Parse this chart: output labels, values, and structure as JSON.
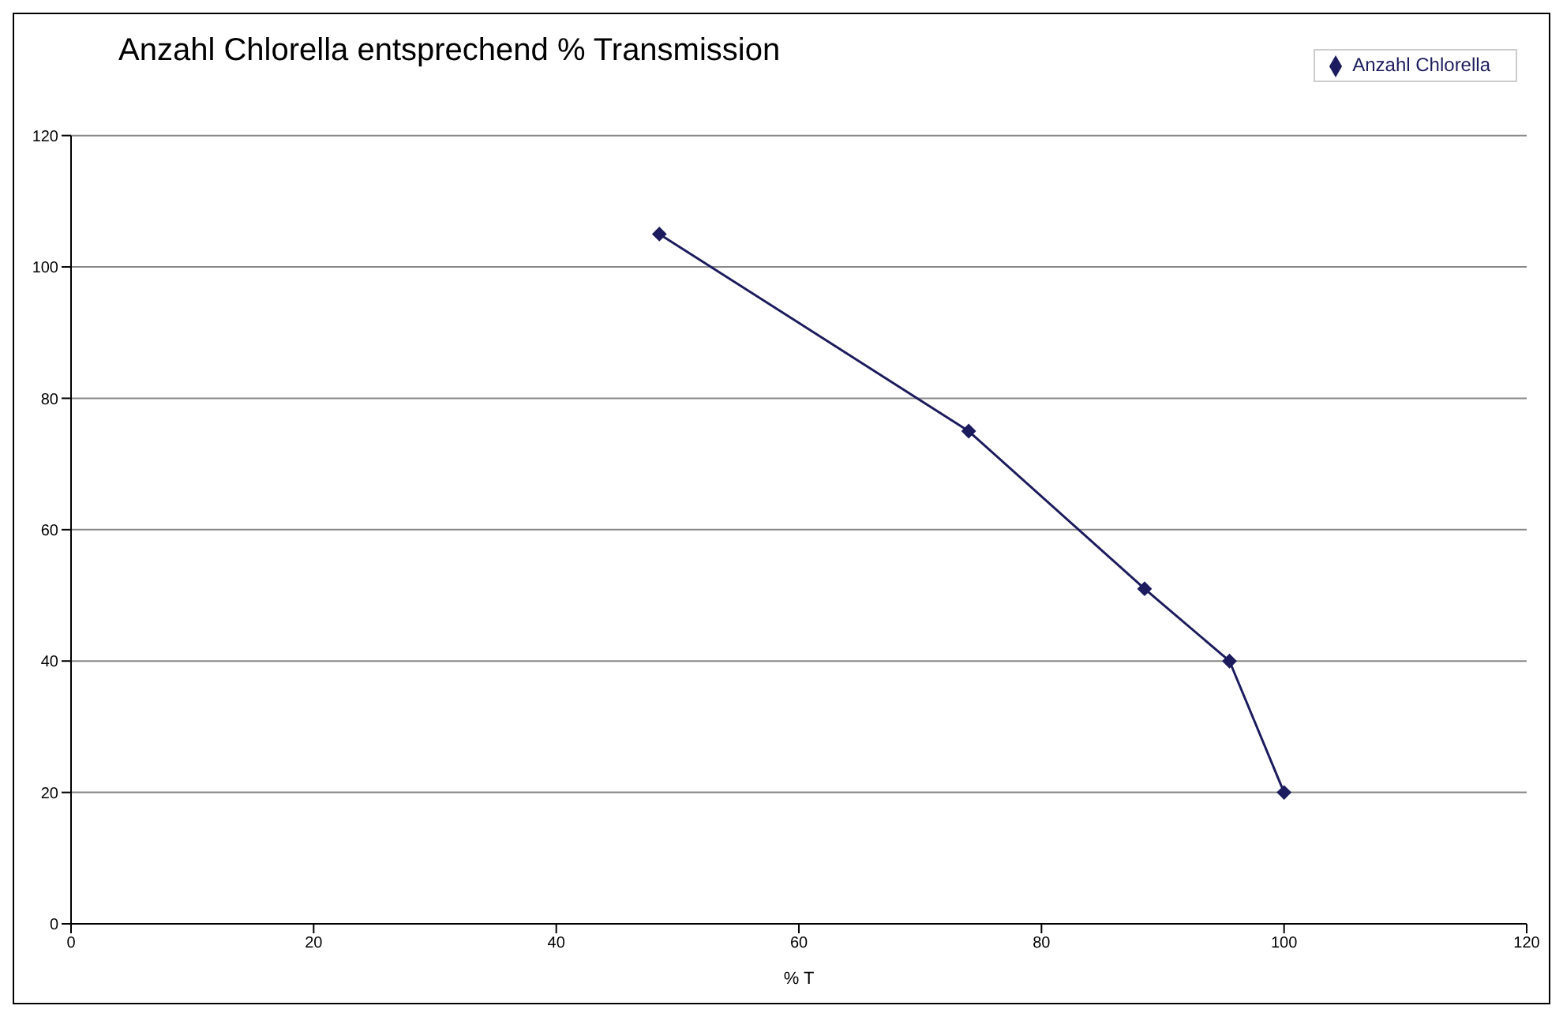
{
  "chart_data": {
    "type": "line",
    "title": "Anzahl Chlorella entsprechend % Transmission",
    "xlabel": "% T",
    "x": [
      48.5,
      74,
      88.5,
      95.5,
      100
    ],
    "series": [
      {
        "name": "Anzahl Chlorella",
        "color": "#1c1c5e",
        "values": [
          105,
          75,
          51,
          40,
          20
        ]
      }
    ],
    "xlim": [
      0,
      120
    ],
    "xticks": [
      0,
      20,
      40,
      60,
      80,
      100,
      120
    ],
    "ylim": [
      0,
      120
    ],
    "yticks": [
      0,
      20,
      40,
      60,
      80,
      100,
      120
    ],
    "grid": "y",
    "legend": "top right",
    "marker": "diamond",
    "line_style": "solid"
  }
}
